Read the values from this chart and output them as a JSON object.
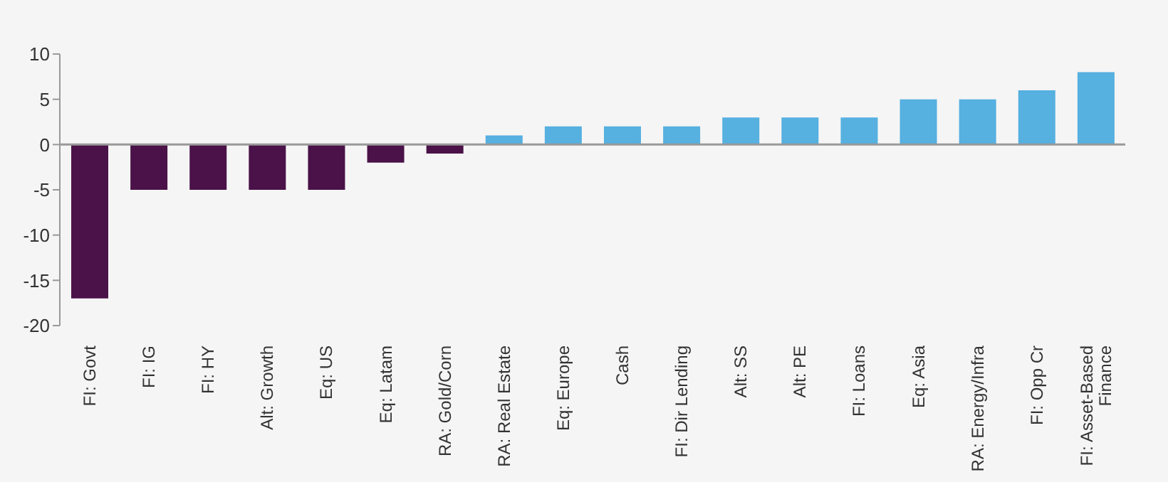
{
  "chart_data": {
    "type": "bar",
    "categories": [
      "FI: Govt",
      "FI: IG",
      "FI: HY",
      "Alt: Growth",
      "Eq: US",
      "Eq: Latam",
      "RA: Gold/Corn",
      "RA: Real Estate",
      "Eq: Europe",
      "Cash",
      "FI: Dir Lending",
      "Alt: SS",
      "Alt: PE",
      "FI: Loans",
      "Eq: Asia",
      "RA: Energy/Infra",
      "FI: Opp Cr",
      "FI: Asset-Based Finance"
    ],
    "values": [
      -17,
      -5,
      -5,
      -5,
      -5,
      -2,
      -1,
      1,
      2,
      2,
      2,
      3,
      3,
      3,
      5,
      5,
      6,
      8
    ],
    "colors": [
      "#4a1248",
      "#4a1248",
      "#4a1248",
      "#4a1248",
      "#4a1248",
      "#4a1248",
      "#4a1248",
      "#56b0e0",
      "#56b0e0",
      "#56b0e0",
      "#56b0e0",
      "#56b0e0",
      "#56b0e0",
      "#56b0e0",
      "#56b0e0",
      "#56b0e0",
      "#56b0e0",
      "#56b0e0"
    ],
    "ylim": [
      -20,
      10
    ],
    "yticks": [
      10,
      5,
      0,
      -5,
      -10,
      -15,
      -20
    ]
  }
}
